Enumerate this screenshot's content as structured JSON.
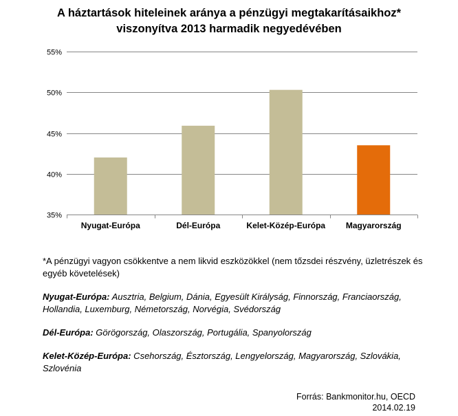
{
  "title_line1": "A háztartások hiteleinek aránya a pénzügyi megtakarításaikhoz*",
  "title_line2": "viszonyítva 2013 harmadik negyedévében",
  "chart_data": {
    "type": "bar",
    "title": "A háztartások hiteleinek aránya a pénzügyi megtakarításaikhoz* viszonyítva 2013 harmadik negyedévében",
    "categories": [
      "Nyugat-Európa",
      "Dél-Európa",
      "Kelet-Közép-Európa",
      "Magyarország"
    ],
    "values": [
      42.0,
      45.9,
      50.3,
      43.5
    ],
    "bar_colors": [
      "#c4bd97",
      "#c4bd97",
      "#c4bd97",
      "#e46c0a"
    ],
    "ylim": [
      35,
      55
    ],
    "yticks": [
      35,
      40,
      45,
      50,
      55
    ],
    "ytick_labels": [
      "35%",
      "40%",
      "45%",
      "50%",
      "55%"
    ],
    "grid": true,
    "gridline_color": "#868686"
  },
  "notes": {
    "footnote": "*A pénzügyi vagyon csökkentve a nem likvid eszközökkel (nem tőzsdei részvény, üzletrészek és egyéb követelések)",
    "west_label": "Nyugat-Európa:",
    "west_text": " Ausztria, Belgium, Dánia, Egyesült Királyság, Finnország, Franciaország, Hollandia, Luxemburg, Németország,  Norvégia, Svédország",
    "south_label": "Dél-Európa:",
    "south_text": " Görögország, Olaszország, Portugália, Spanyolország",
    "cee_label": "Kelet-Közép-Európa:",
    "cee_text": " Csehország, Észtország, Lengyelország, Magyarország, Szlovákia, Szlovénia"
  },
  "source": {
    "line1": "Forrás: Bankmonitor.hu, OECD",
    "line2": "2014.02.19"
  }
}
